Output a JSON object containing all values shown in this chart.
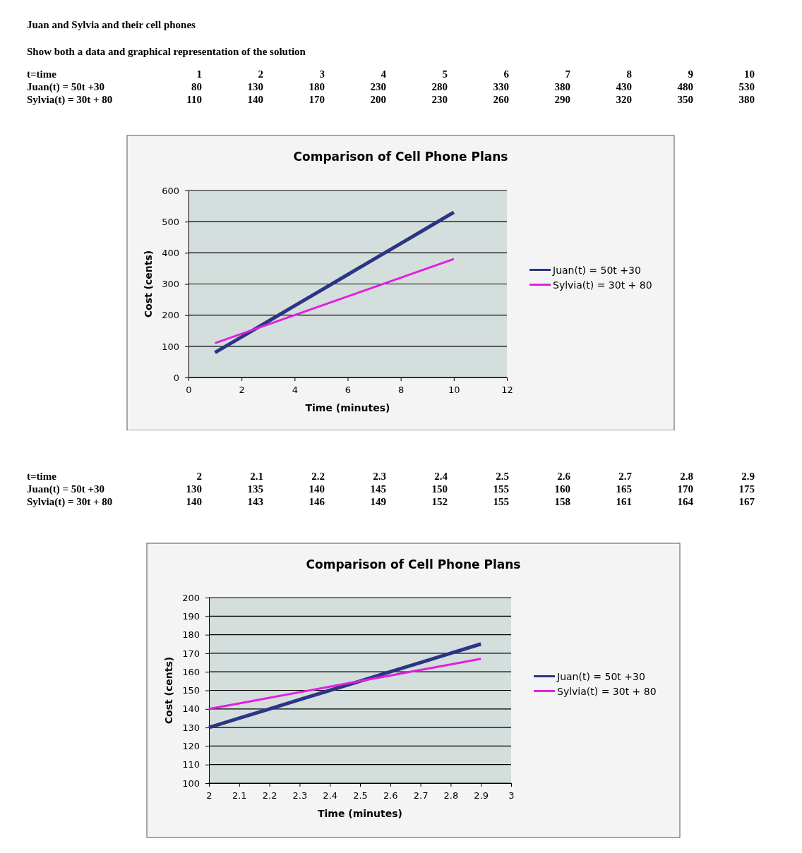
{
  "chart_data": [
    {
      "type": "heatmap",
      "title": "Juan and Sylvia and their cell phones",
      "subtitle": "Show both a data and graphical representation of the solution",
      "annotations": [
        "t=time"
      ],
      "categories": [
        "1",
        "2",
        "3",
        "4",
        "5",
        "6",
        "7",
        "8",
        "9",
        "10"
      ],
      "y_categories": [
        "Juan(t) = 50t +30",
        "Sylvia(t) = 30t + 80"
      ],
      "cells": [
        [
          80,
          130,
          180,
          230,
          280,
          330,
          380,
          430,
          480,
          530
        ],
        [
          110,
          140,
          170,
          200,
          230,
          260,
          290,
          320,
          350,
          380
        ]
      ],
      "data_labels": true
    },
    {
      "type": "line",
      "title": "Comparison of Cell Phone Plans",
      "xlabel": "Time (minutes)",
      "ylabel": "Cost (cents)",
      "x": [
        1,
        2,
        3,
        4,
        5,
        6,
        7,
        8,
        9,
        10
      ],
      "series": [
        {
          "name": "Juan(t) = 50t +30",
          "color": "#2b3585",
          "values": [
            80,
            130,
            180,
            230,
            280,
            330,
            380,
            430,
            480,
            530
          ]
        },
        {
          "name": "Sylvia(t) = 30t + 80",
          "color": "#e020e0",
          "values": [
            110,
            140,
            170,
            200,
            230,
            260,
            290,
            320,
            350,
            380
          ]
        }
      ],
      "xlim": [
        0,
        12
      ],
      "xticks": [
        0,
        2,
        4,
        6,
        8,
        10,
        12
      ],
      "ylim": [
        0,
        600
      ],
      "yticks": [
        0,
        100,
        200,
        300,
        400,
        500,
        600
      ],
      "grid": "y",
      "legend": "right",
      "marker": "none",
      "line_style": "solid"
    },
    {
      "type": "heatmap",
      "annotations": [
        "t=time"
      ],
      "categories": [
        "2",
        "2.1",
        "2.2",
        "2.3",
        "2.4",
        "2.5",
        "2.6",
        "2.7",
        "2.8",
        "2.9"
      ],
      "y_categories": [
        "Juan(t) = 50t +30",
        "Sylvia(t) = 30t + 80"
      ],
      "cells": [
        [
          130,
          135,
          140,
          145,
          150,
          155,
          160,
          165,
          170,
          175
        ],
        [
          140,
          143,
          146,
          149,
          152,
          155,
          158,
          161,
          164,
          167
        ]
      ],
      "data_labels": true
    },
    {
      "type": "line",
      "title": "Comparison of Cell Phone Plans",
      "xlabel": "Time (minutes)",
      "ylabel": "Cost (cents)",
      "x": [
        2,
        2.1,
        2.2,
        2.3,
        2.4,
        2.5,
        2.6,
        2.7,
        2.8,
        2.9
      ],
      "series": [
        {
          "name": "Juan(t) = 50t +30",
          "color": "#2b3585",
          "values": [
            130,
            135,
            140,
            145,
            150,
            155,
            160,
            165,
            170,
            175
          ]
        },
        {
          "name": "Sylvia(t) = 30t + 80",
          "color": "#e020e0",
          "values": [
            140,
            143,
            146,
            149,
            152,
            155,
            158,
            161,
            164,
            167
          ]
        }
      ],
      "xlim": [
        2,
        3
      ],
      "xticks": [
        2,
        2.1,
        2.2,
        2.3,
        2.4,
        2.5,
        2.6,
        2.7,
        2.8,
        2.9,
        3
      ],
      "ylim": [
        100,
        200
      ],
      "yticks": [
        100,
        110,
        120,
        130,
        140,
        150,
        160,
        170,
        180,
        190,
        200
      ],
      "grid": "y",
      "legend": "right",
      "marker": "none",
      "line_style": "solid"
    }
  ]
}
